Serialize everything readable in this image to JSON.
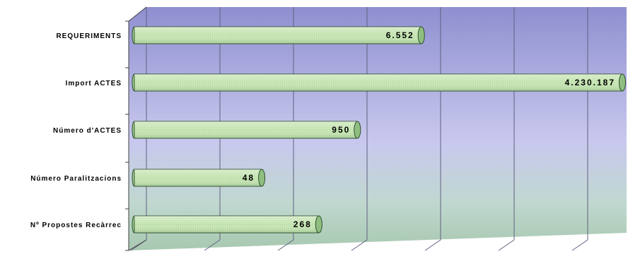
{
  "chart_data": {
    "type": "bar",
    "orientation": "horizontal",
    "categories": [
      "REQUERIMENTS",
      "Import ACTES",
      "Número d'ACTES",
      "Número Paralitzacions",
      "Nº Propostes Recàrrec"
    ],
    "values": [
      6552,
      4230187,
      950,
      48,
      268
    ],
    "value_labels": [
      "6.552",
      "4.230.187",
      "950",
      "48",
      "268"
    ],
    "relative_lengths": [
      0.588,
      1.0,
      0.457,
      0.261,
      0.378
    ],
    "title": "",
    "xlabel": "",
    "ylabel": "",
    "grid": true,
    "legend": "none",
    "colors": {
      "bar_fill": "#c8e6b4",
      "bar_edge": "#2f4f2f",
      "bar_cap": "#8fbf80",
      "bg_top": "#8f8fd0",
      "bg_mid": "#c8c8ee",
      "bg_bottom": "#a8c8b0",
      "grid": "#606080"
    }
  }
}
